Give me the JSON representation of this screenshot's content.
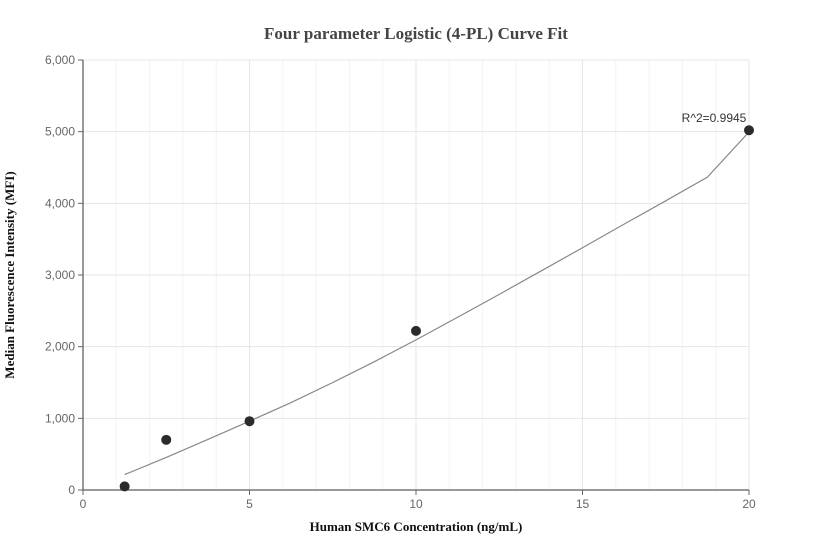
{
  "chart_data": {
    "type": "scatter",
    "title": "Four parameter Logistic (4-PL) Curve Fit",
    "xlabel": "Human SMC6 Concentration (ng/mL)",
    "ylabel": "Median Fluorescence Intensity (MFI)",
    "xlim": [
      0,
      20
    ],
    "ylim": [
      0,
      6000
    ],
    "x_ticks": [
      0,
      5,
      10,
      15,
      20
    ],
    "x_tick_labels": [
      "0",
      "5",
      "10",
      "15",
      "20"
    ],
    "y_ticks": [
      0,
      1000,
      2000,
      3000,
      4000,
      5000,
      6000
    ],
    "y_tick_labels": [
      "0",
      "1,000",
      "2,000",
      "3,000",
      "4,000",
      "5,000",
      "6,000"
    ],
    "grid": true,
    "series": [
      {
        "type": "scatter",
        "x": [
          1.25,
          2.5,
          5,
          10,
          20
        ],
        "y": [
          50,
          700,
          960,
          2220,
          5020
        ],
        "color": "#2b2b2b"
      },
      {
        "type": "line",
        "x": [
          1.25,
          2.5,
          3.75,
          5,
          6.25,
          7.5,
          8.75,
          10,
          11.25,
          12.5,
          13.75,
          15,
          16.25,
          17.5,
          18.75,
          20
        ],
        "y": [
          215,
          455,
          705,
          960,
          1220,
          1500,
          1790,
          2095,
          2410,
          2730,
          3055,
          3380,
          3710,
          4035,
          4365,
          4995
        ],
        "color": "#888888"
      }
    ],
    "annotations": [
      {
        "text": "R^2=0.9945",
        "x": 20,
        "y": 5020
      }
    ]
  }
}
